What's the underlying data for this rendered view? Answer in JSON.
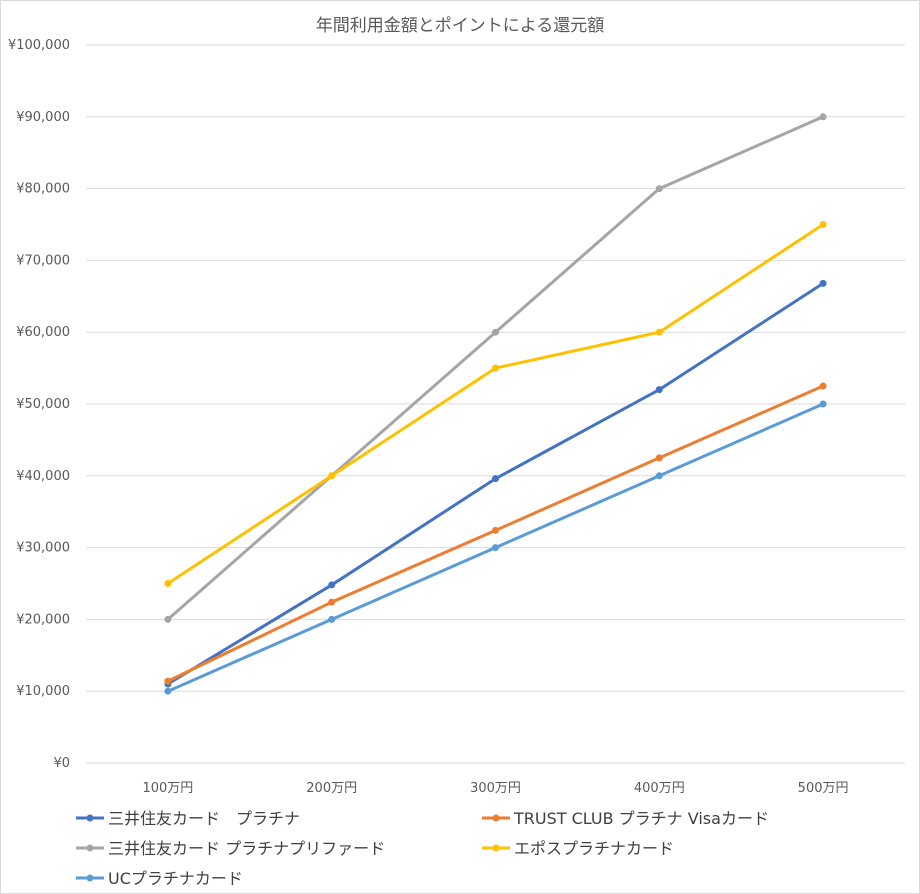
{
  "chart_data": {
    "type": "line",
    "title": "年間利用金額とポイントによる還元額",
    "xlabel": "",
    "ylabel": "",
    "categories": [
      "100万円",
      "200万円",
      "300万円",
      "400万円",
      "500万円"
    ],
    "y_ticks": [
      "¥0",
      "¥10,000",
      "¥20,000",
      "¥30,000",
      "¥40,000",
      "¥50,000",
      "¥60,000",
      "¥70,000",
      "¥80,000",
      "¥90,000",
      "¥100,000"
    ],
    "ylim": [
      0,
      100000
    ],
    "grid": true,
    "legend_position": "bottom",
    "series": [
      {
        "name": "三井住友カード　プラチナ",
        "color": "#4472c4",
        "values": [
          11000,
          24800,
          39600,
          52000,
          66800
        ]
      },
      {
        "name": "TRUST CLUB プラチナ Visaカード",
        "color": "#ed7d31",
        "values": [
          11400,
          22400,
          32400,
          42500,
          52500
        ]
      },
      {
        "name": "三井住友カード プラチナプリファード",
        "color": "#a5a5a5",
        "values": [
          20000,
          40000,
          60000,
          80000,
          90000
        ]
      },
      {
        "name": "エポスプラチナカード",
        "color": "#ffc000",
        "values": [
          25000,
          40000,
          55000,
          60000,
          75000
        ]
      },
      {
        "name": "UCプラチナカード",
        "color": "#5b9bd5",
        "values": [
          10000,
          20000,
          30000,
          40000,
          50000
        ]
      }
    ]
  }
}
